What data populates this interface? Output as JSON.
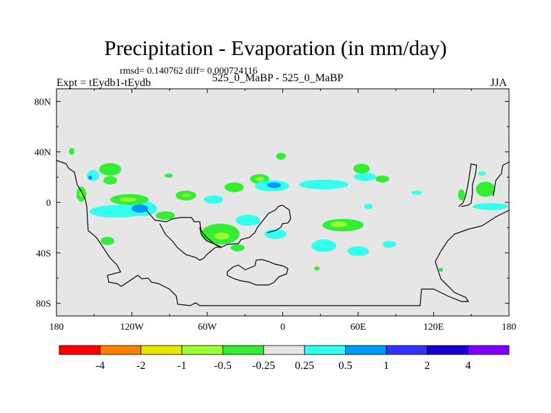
{
  "chart_data": {
    "type": "contour-map",
    "title": "Precipitation - Evaporation (in mm/day)",
    "stats_text": "rmsd= 0.140762 diff= 0.000724116",
    "left_label": "Expt = tEydb1-tEydb",
    "center_label": "525_0_MaBP - 525_0_MaBP",
    "right_label": "JJA",
    "x_ticks": [
      "180",
      "120W",
      "60W",
      "0",
      "60E",
      "120E",
      "180"
    ],
    "x_values": [
      -180,
      -120,
      -60,
      0,
      60,
      120,
      180
    ],
    "y_ticks": [
      "80N",
      "40N",
      "0",
      "40S",
      "80S"
    ],
    "y_values": [
      80,
      40,
      0,
      -40,
      -80
    ],
    "xlim": [
      -180,
      180
    ],
    "ylim": [
      -90,
      90
    ],
    "colorbar": {
      "labels": [
        "-4",
        "-2",
        "-1",
        "-0.5",
        "-0.25",
        "0.25",
        "0.5",
        "1",
        "2",
        "4"
      ],
      "colors": [
        "#ff0000",
        "#ff8000",
        "#e6e600",
        "#99ff33",
        "#33ee33",
        "#e6e6e6",
        "#33ffee",
        "#0099ff",
        "#3333ff",
        "#1400cc",
        "#8000ff"
      ]
    },
    "background_color": "#e6e6e6",
    "features": [
      {
        "name": "green-patch-tropical-pacific",
        "category": "-0.5 to -0.25",
        "lon": -135,
        "lat": 6
      },
      {
        "name": "cyan-band-south-pacific",
        "category": "0.25 to 0.5",
        "lon": -145,
        "lat": -7
      },
      {
        "name": "blue-core-south-pacific",
        "category": "0.5 to 1",
        "lon": -124,
        "lat": -6
      },
      {
        "name": "green-patch-south-america",
        "category": "-0.5 to -0.25",
        "lon": -48,
        "lat": -25
      },
      {
        "name": "cyan-band-north-atlantic",
        "category": "0.25 to 0.5",
        "lon": -20,
        "lat": 17
      },
      {
        "name": "blue-core-north-atlantic",
        "category": "0.5 to 1",
        "lon": -7,
        "lat": 16
      },
      {
        "name": "green-patch-indian-ocean",
        "category": "-0.5 to -0.25",
        "lon": 50,
        "lat": -18
      },
      {
        "name": "cyan-patch-south-indian",
        "category": "0.25 to 0.5",
        "lon": 35,
        "lat": -32
      },
      {
        "name": "green-patch-east-pacific",
        "category": "-0.5 to -0.25",
        "lon": 165,
        "lat": 10
      },
      {
        "name": "cyan-band-east-pacific",
        "category": "0.25 to 0.5",
        "lon": 160,
        "lat": -2
      }
    ]
  }
}
